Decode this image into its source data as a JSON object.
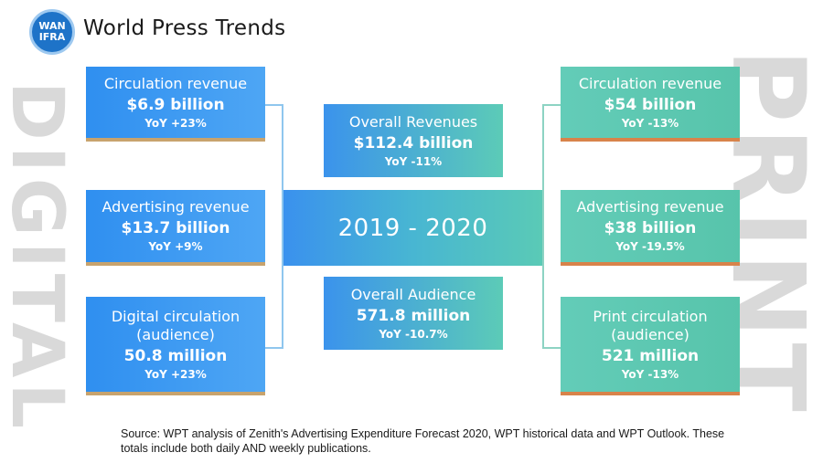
{
  "brand": {
    "logo_top": "WAN",
    "logo_bottom": "IFRA",
    "title": "World Press Trends",
    "logo_color": "#1e73c8"
  },
  "side_labels": {
    "left": "DIGITAL",
    "right": "PRINT"
  },
  "center": {
    "period": "2019 - 2020",
    "revenues": {
      "label": "Overall Revenues",
      "value": "$112.4 billion",
      "yoy": "YoY -11%"
    },
    "audience": {
      "label": "Overall Audience",
      "value": "571.8 million",
      "yoy": "YoY -10.7%"
    }
  },
  "digital": [
    {
      "label": "Circulation revenue",
      "value": "$6.9 billion",
      "yoy": "YoY +23%"
    },
    {
      "label": "Advertising revenue",
      "value": "$13.7 billion",
      "yoy": "YoY +9%"
    },
    {
      "label_line1": "Digital circulation",
      "label_line2": "(audience)",
      "value": "50.8 million",
      "yoy": "YoY +23%"
    }
  ],
  "print": [
    {
      "label": "Circulation revenue",
      "value": "$54 billion",
      "yoy": "YoY -13%"
    },
    {
      "label": "Advertising revenue",
      "value": "$38 billion",
      "yoy": "YoY -19.5%"
    },
    {
      "label_line1": "Print circulation",
      "label_line2": "(audience)",
      "value": "521 million",
      "yoy": "YoY -13%"
    }
  ],
  "colors": {
    "digital_box": "#2f8ff0",
    "print_box": "#63ccb8",
    "digital_underline": "#c8a36d",
    "print_underline": "#d8834a"
  },
  "source": "Source: WPT analysis of Zenith's Advertising Expenditure Forecast 2020, WPT historical data and WPT Outlook. These totals include both daily AND weekly publications."
}
